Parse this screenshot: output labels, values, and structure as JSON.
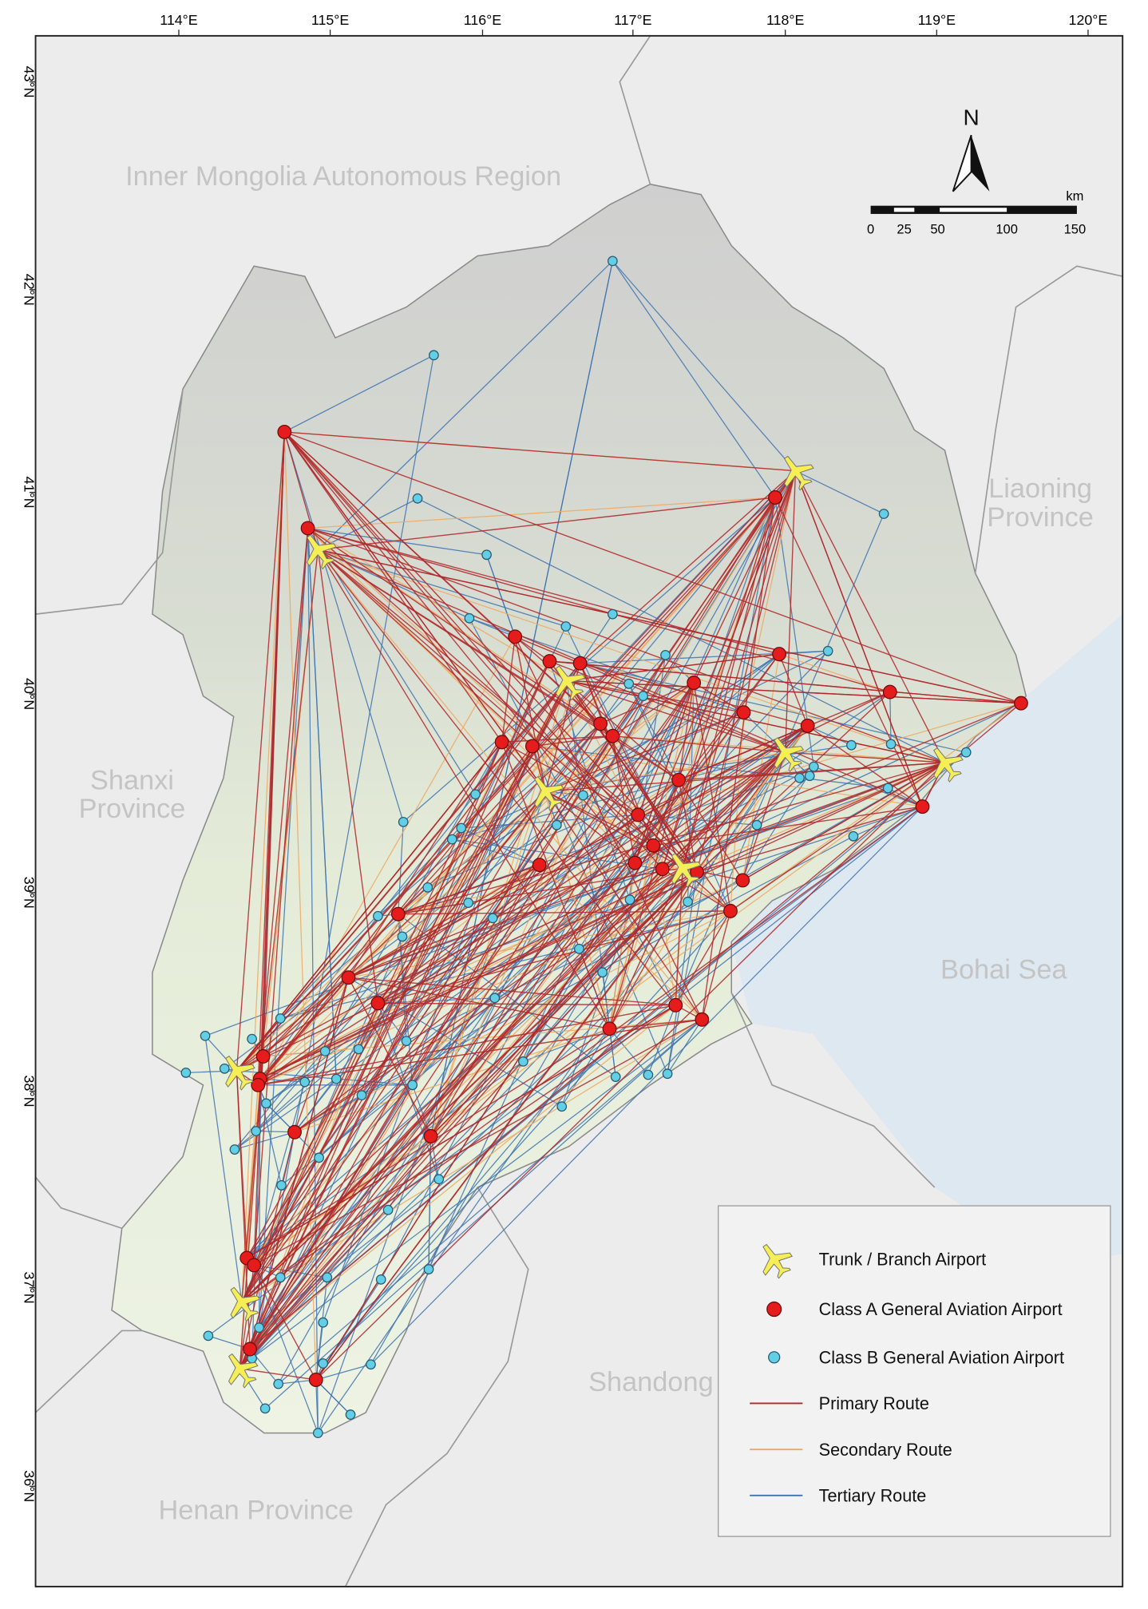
{
  "map": {
    "longitude_labels": [
      "114°E",
      "115°E",
      "116°E",
      "117°E",
      "118°E",
      "119°E",
      "120°E"
    ],
    "latitude_labels": [
      "43°N",
      "42°N",
      "41°N",
      "40°N",
      "39°N",
      "38°N",
      "37°N",
      "36°N"
    ],
    "regions": {
      "inner_mongolia": "Inner Mongolia Autonomous Region",
      "liaoning": [
        "Liaoning",
        "Province"
      ],
      "shanxi": [
        "Shanxi",
        "Province"
      ],
      "bohai": "Bohai Sea",
      "shandong": "Shandong Province",
      "henan": "Henan Province"
    },
    "north": "N",
    "scale_bar": {
      "unit": "km",
      "labels": [
        "0",
        "25",
        "50",
        "100",
        "150"
      ]
    },
    "legend": [
      "Trunk / Branch Airport",
      "Class A General Aviation Airport",
      "Class B General Aviation Airport",
      "Primary Route",
      "Secondary Route",
      "Tertiary Route"
    ]
  }
}
